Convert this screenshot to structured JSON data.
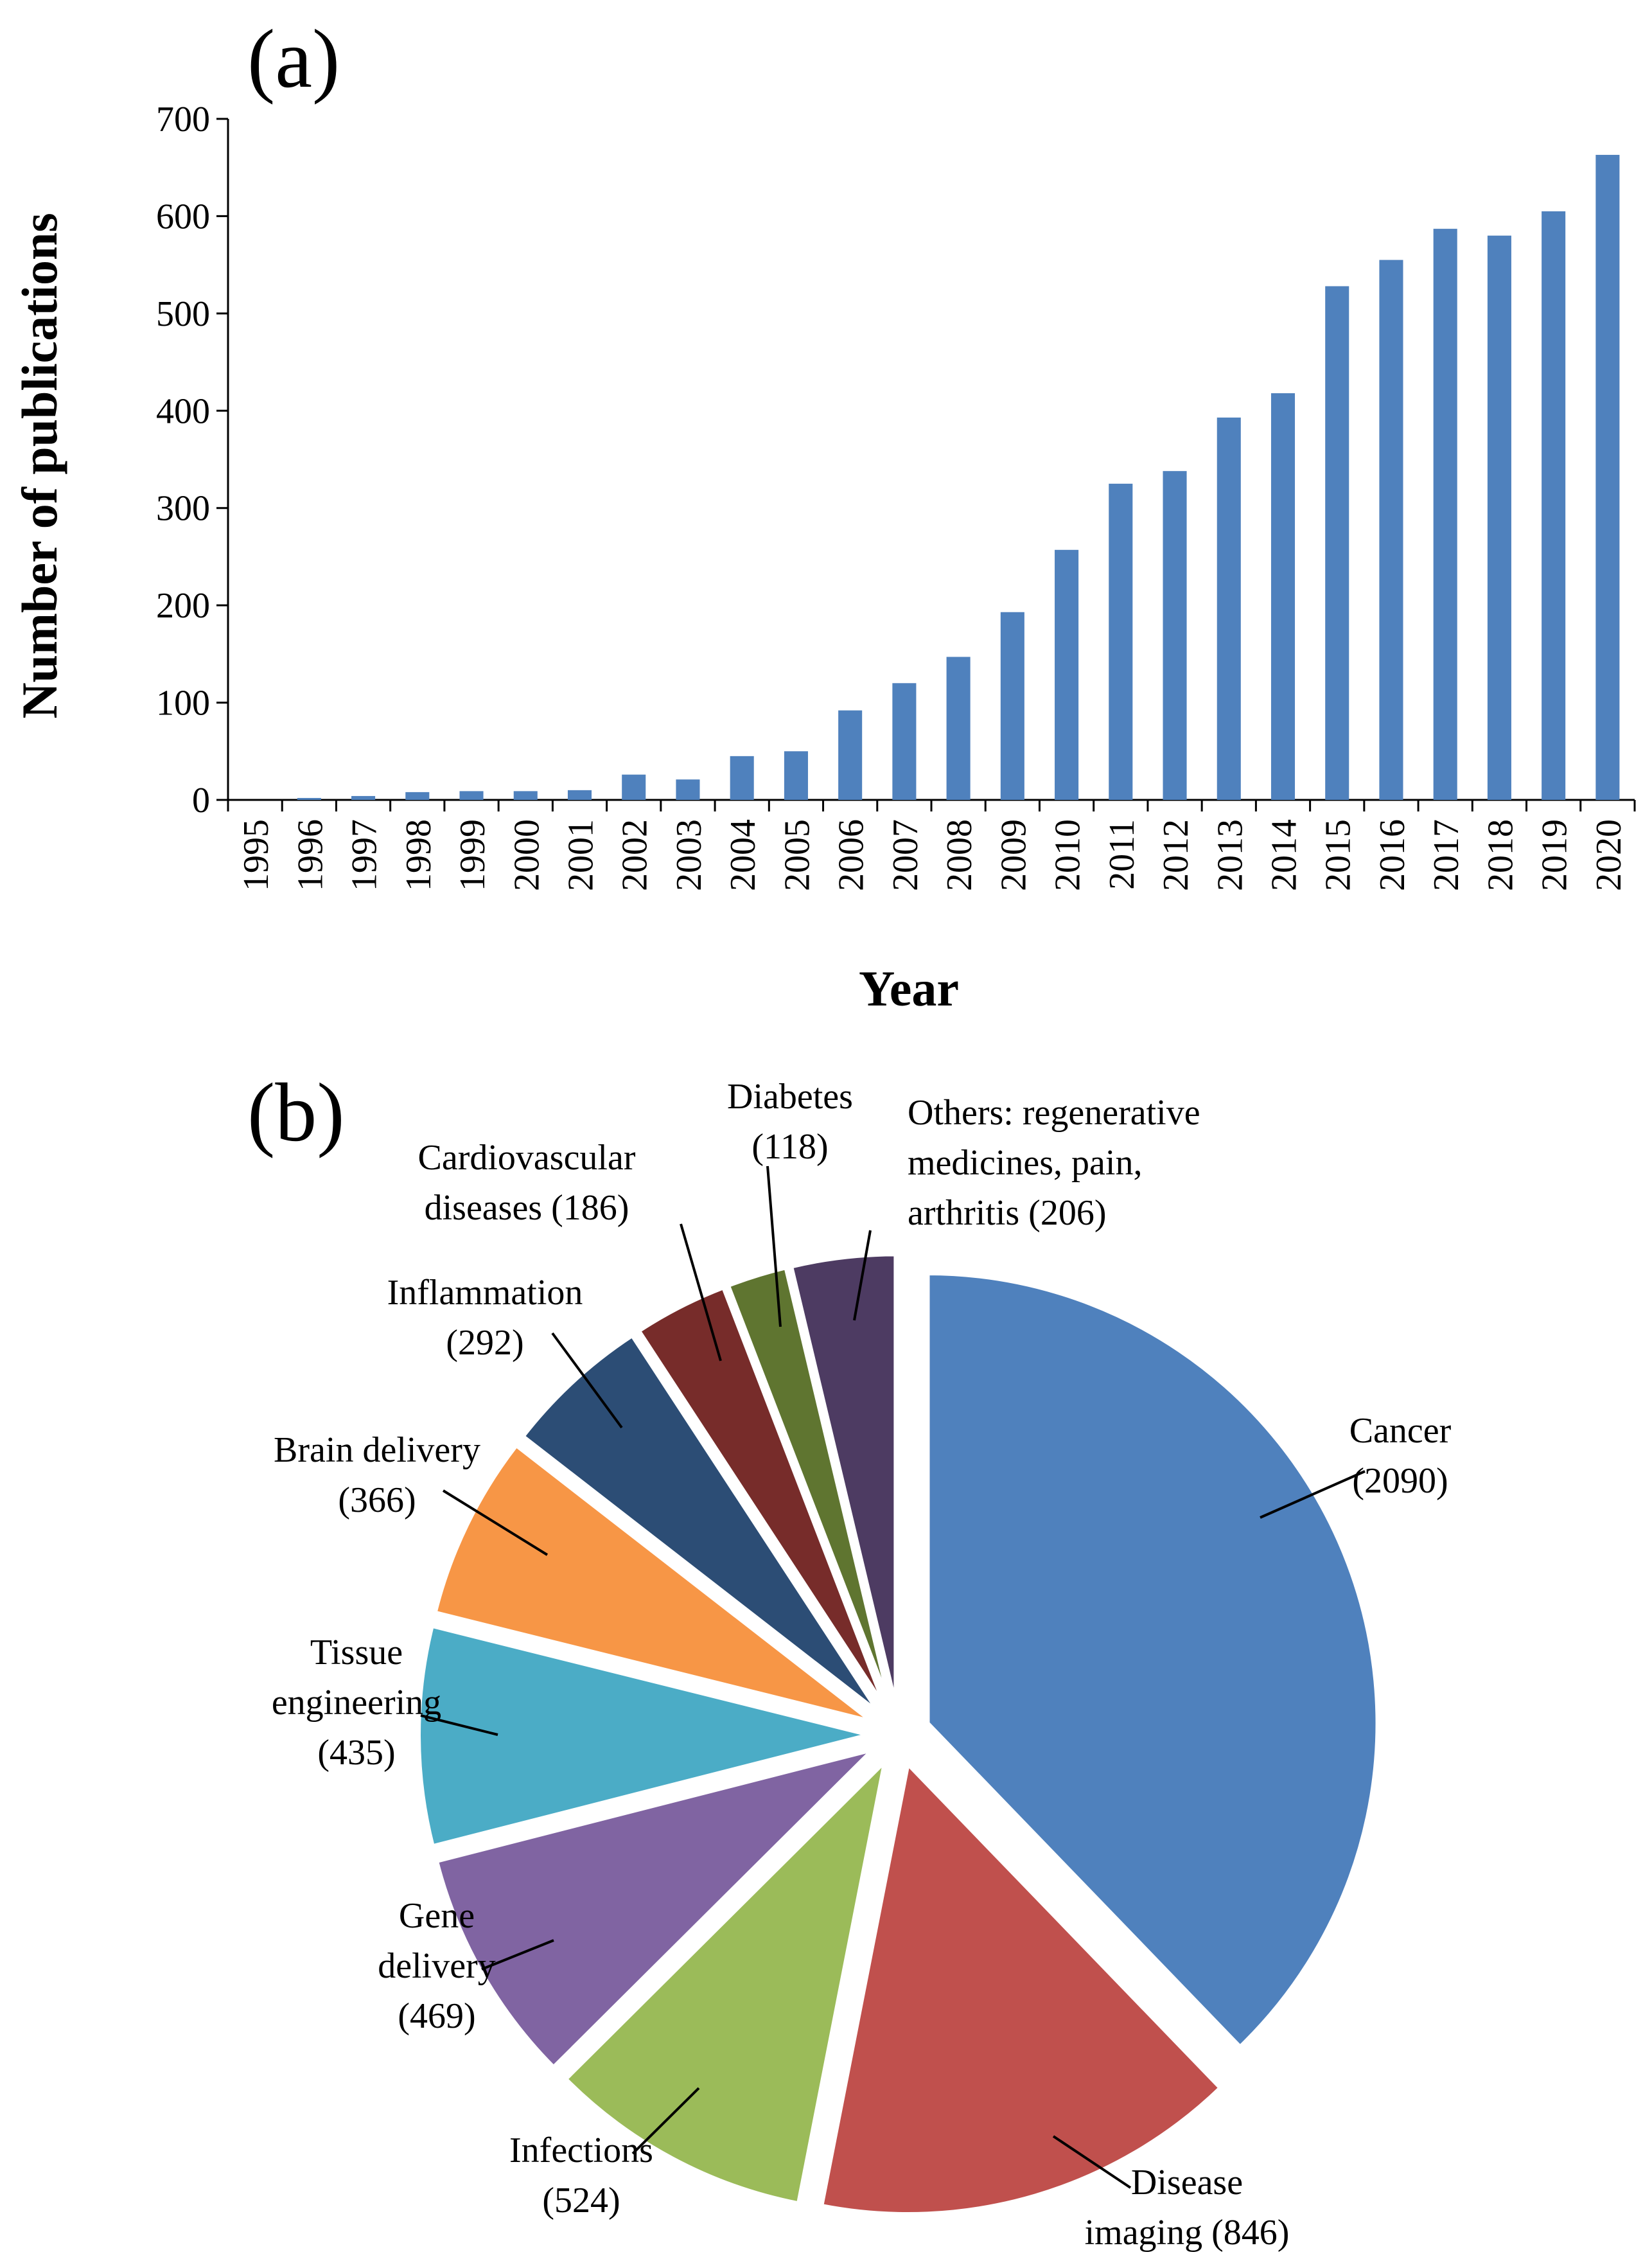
{
  "figure": {
    "panel_a_label": "(a)",
    "panel_b_label": "(b)"
  },
  "chart_data": [
    {
      "type": "bar",
      "title": "",
      "xlabel": "Year",
      "ylabel": "Number of publications",
      "ylim": [
        0,
        700
      ],
      "yticks": [
        0,
        100,
        200,
        300,
        400,
        500,
        600,
        700
      ],
      "grid": false,
      "color": "#4F81BD",
      "categories": [
        "1995",
        "1996",
        "1997",
        "1998",
        "1999",
        "2000",
        "2001",
        "2002",
        "2003",
        "2004",
        "2005",
        "2006",
        "2007",
        "2008",
        "2009",
        "2010",
        "2011",
        "2012",
        "2013",
        "2014",
        "2015",
        "2016",
        "2017",
        "2018",
        "2019",
        "2020"
      ],
      "values": [
        0,
        2,
        4,
        8,
        9,
        9,
        10,
        26,
        21,
        45,
        50,
        92,
        120,
        147,
        193,
        257,
        325,
        338,
        393,
        418,
        528,
        555,
        587,
        580,
        605,
        663
      ]
    },
    {
      "type": "pie",
      "title": "",
      "exploded": true,
      "slices": [
        {
          "name": "Cancer",
          "value": 2090,
          "lines": [
            "Cancer",
            "(2090)"
          ],
          "color": "#4F81BD"
        },
        {
          "name": "Disease imaging",
          "value": 846,
          "lines": [
            "Disease",
            "imaging (846)"
          ],
          "color": "#C0504D"
        },
        {
          "name": "Infections",
          "value": 524,
          "lines": [
            "Infections",
            "(524)"
          ],
          "color": "#9BBB59"
        },
        {
          "name": "Gene delivery",
          "value": 469,
          "lines": [
            "Gene",
            "delivery",
            "(469)"
          ],
          "color": "#8064A2"
        },
        {
          "name": "Tissue engineering",
          "value": 435,
          "lines": [
            "Tissue",
            "engineering",
            "(435)"
          ],
          "color": "#4BACC6"
        },
        {
          "name": "Brain delivery",
          "value": 366,
          "lines": [
            "Brain delivery",
            "(366)"
          ],
          "color": "#F79646"
        },
        {
          "name": "Inflammation",
          "value": 292,
          "lines": [
            "Inflammation",
            "(292)"
          ],
          "color": "#2C4D75"
        },
        {
          "name": "Cardiovascular diseases",
          "value": 186,
          "lines": [
            "Cardiovascular",
            "diseases (186)"
          ],
          "color": "#772C2A"
        },
        {
          "name": "Diabetes",
          "value": 118,
          "lines": [
            "Diabetes",
            "(118)"
          ],
          "color": "#5F7530"
        },
        {
          "name": "Others: regenerative medicines, pain, arthritis",
          "value": 206,
          "lines": [
            "Others: regenerative",
            "medicines, pain,",
            "arthritis (206)"
          ],
          "color": "#4D3B62"
        }
      ]
    }
  ]
}
